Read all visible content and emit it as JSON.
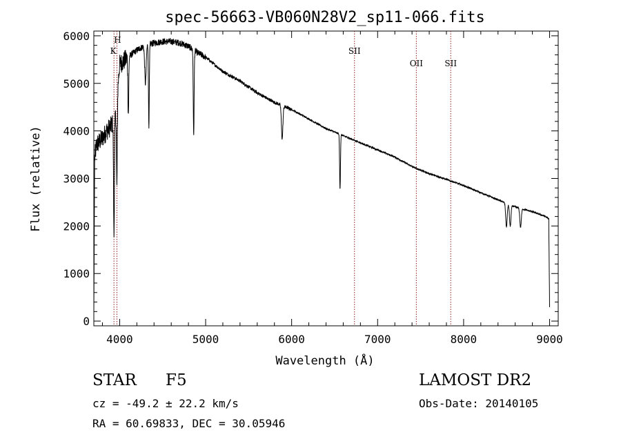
{
  "chart_data": {
    "type": "line",
    "title": "spec-56663-VB060N28V2_sp11-066.fits",
    "xlabel": "Wavelength (Å)",
    "ylabel": "Flux (relative)",
    "xlim": [
      3700,
      9100
    ],
    "ylim": [
      -100,
      6100
    ],
    "xticks": [
      4000,
      5000,
      6000,
      7000,
      8000,
      9000
    ],
    "xtick_labels": [
      "4000",
      "5000",
      "6000",
      "7000",
      "8000",
      "9000"
    ],
    "yticks": [
      0,
      1000,
      2000,
      3000,
      4000,
      5000,
      6000
    ],
    "ytick_labels": [
      "0",
      "1000",
      "2000",
      "3000",
      "4000",
      "5000",
      "6000"
    ],
    "grid": false,
    "line_color": "#000000",
    "line_marker_color": "#8b1a1a",
    "continuum": {
      "x": [
        3700,
        3730,
        3800,
        3850,
        3900,
        3950,
        4000,
        4100,
        4200,
        4300,
        4400,
        4500,
        4600,
        4700,
        4800,
        4900,
        5000,
        5200,
        5400,
        5600,
        5800,
        6000,
        6200,
        6400,
        6600,
        6800,
        7000,
        7200,
        7400,
        7600,
        7800,
        8000,
        8200,
        8400,
        8600,
        8800,
        8950,
        8990,
        9000
      ],
      "y": [
        3300,
        3700,
        3850,
        4000,
        4100,
        4250,
        5400,
        5550,
        5700,
        5800,
        5850,
        5880,
        5880,
        5850,
        5780,
        5650,
        5550,
        5250,
        5050,
        4800,
        4600,
        4450,
        4250,
        4050,
        3900,
        3750,
        3600,
        3450,
        3250,
        3100,
        2980,
        2850,
        2700,
        2550,
        2400,
        2300,
        2200,
        2150,
        300
      ]
    },
    "absorption_lines": [
      {
        "x": 3934,
        "depth": 2400
      },
      {
        "x": 3968,
        "depth": 1800
      },
      {
        "x": 4101,
        "depth": 1200
      },
      {
        "x": 4300,
        "depth": 800
      },
      {
        "x": 4340,
        "depth": 1700
      },
      {
        "x": 4861,
        "depth": 1800
      },
      {
        "x": 5890,
        "depth": 700
      },
      {
        "x": 6563,
        "depth": 1150
      },
      {
        "x": 8498,
        "depth": 500
      },
      {
        "x": 8542,
        "depth": 450
      },
      {
        "x": 8662,
        "depth": 400
      }
    ],
    "line_markers": [
      {
        "x": 3934,
        "label": "K"
      },
      {
        "x": 3968,
        "label": "H"
      },
      {
        "x": 6731,
        "label": "SII"
      },
      {
        "x": 7450,
        "label": "OII"
      },
      {
        "x": 7850,
        "label": "SII"
      }
    ]
  },
  "info": {
    "object_class": "STAR",
    "subclass": "F5",
    "survey": "LAMOST DR2",
    "redshift_text": "cz = -49.2 ± 22.2 km/s",
    "obs_date_text": "Obs-Date: 20140105",
    "coords_text": "RA =  60.69833, DEC =  30.05946"
  }
}
